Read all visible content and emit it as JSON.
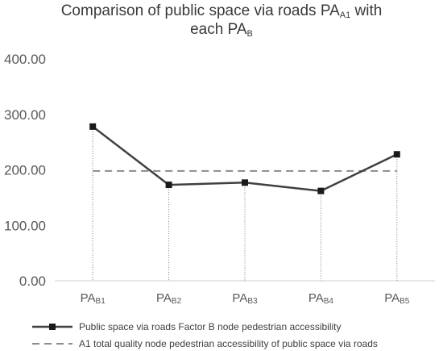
{
  "chart_data": {
    "type": "line",
    "title": {
      "line1_prefix": "Comparison of public space via roads PA",
      "line1_sub": "A1",
      "line1_suffix": " with",
      "line2_prefix": "each PA",
      "line2_sub": "B"
    },
    "categories": [
      {
        "base": "PA",
        "sub": "B1"
      },
      {
        "base": "PA",
        "sub": "B2"
      },
      {
        "base": "PA",
        "sub": "B3"
      },
      {
        "base": "PA",
        "sub": "B4"
      },
      {
        "base": "PA",
        "sub": "B5"
      }
    ],
    "yticks": [
      "0.00",
      "100.00",
      "200.00",
      "300.00",
      "400.00"
    ],
    "ylim": [
      0,
      400
    ],
    "grid": false,
    "legend_position": "bottom",
    "series": [
      {
        "name": "Public space via roads Factor B node pedestrian accessibility",
        "style": "solid-square-markers",
        "color": "#404040",
        "values": [
          278,
          173,
          177,
          162,
          228
        ]
      },
      {
        "name": "A1 total quality node pedestrian accessibility of public space via roads",
        "style": "dashed",
        "color": "#8c8c8c",
        "values": [
          198,
          198,
          198,
          198,
          198
        ]
      }
    ],
    "drop_lines": true
  }
}
